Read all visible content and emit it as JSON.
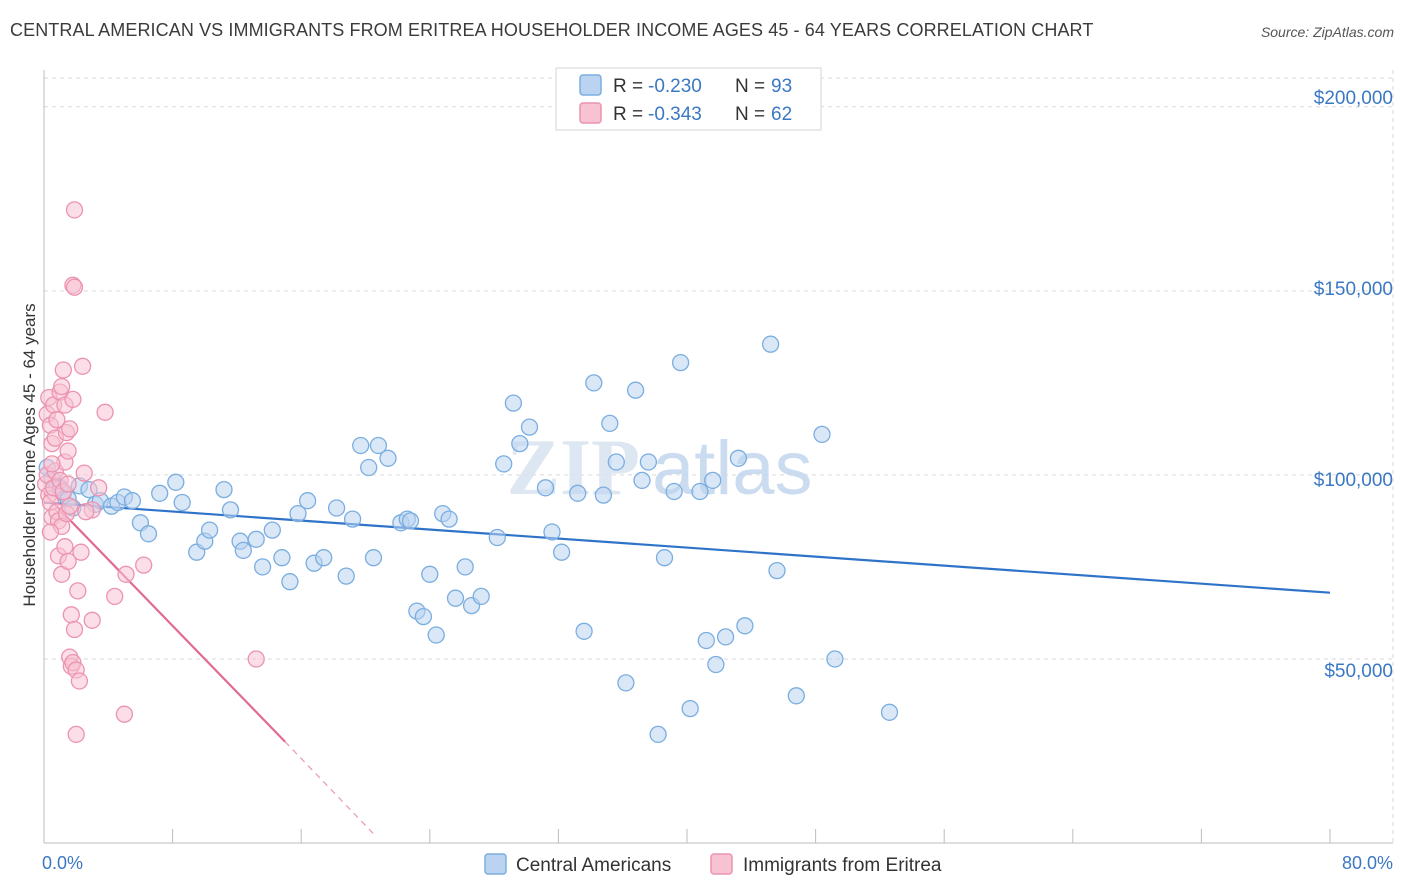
{
  "header": {
    "title": "CENTRAL AMERICAN VS IMMIGRANTS FROM ERITREA HOUSEHOLDER INCOME AGES 45 - 64 YEARS CORRELATION CHART",
    "source": "Source: ZipAtlas.com"
  },
  "watermark": {
    "zip": "ZIP",
    "atlas": "atlas"
  },
  "colors": {
    "blue_fill": "#b9d3f0",
    "blue_stroke": "#7aaee0",
    "blue_line": "#2f73c9",
    "pink_fill": "#f7c3d3",
    "pink_stroke": "#ec93b0",
    "pink_line": "#e06a95",
    "axis_text": "#3b78c4",
    "grid": "#d9d9d9"
  },
  "legend": {
    "rows": [
      {
        "r_label": "R = ",
        "r_value": "-0.230",
        "n_label": "N = ",
        "n_value": "93",
        "series": "blue"
      },
      {
        "r_label": "R = ",
        "r_value": "-0.343",
        "n_label": "N = ",
        "n_value": "62",
        "series": "pink"
      }
    ]
  },
  "chart_data": {
    "type": "scatter",
    "title": "CENTRAL AMERICAN VS IMMIGRANTS FROM ERITREA HOUSEHOLDER INCOME AGES 45 - 64 YEARS CORRELATION CHART",
    "xlabel": "",
    "ylabel": "Householder Income Ages 45 - 64 years",
    "xlim": [
      0,
      80
    ],
    "ylim": [
      0,
      210000
    ],
    "x_tick_labels": [
      "0.0%",
      "80.0%"
    ],
    "y_ticks": [
      50000,
      100000,
      150000,
      200000
    ],
    "y_tick_labels": [
      "$50,000",
      "$100,000",
      "$150,000",
      "$200,000"
    ],
    "grid": true,
    "legend_position": "bottom-center",
    "series": [
      {
        "name": "Central Americans",
        "color": "blue",
        "r": -0.23,
        "n": 93,
        "trend": {
          "x": [
            0,
            80
          ],
          "y": [
            92500,
            68000
          ]
        },
        "points": [
          [
            0.2,
            102000
          ],
          [
            0.5,
            99000
          ],
          [
            0.8,
            97000
          ],
          [
            1.0,
            96500
          ],
          [
            1.2,
            95000
          ],
          [
            1.5,
            93500
          ],
          [
            1.8,
            91000
          ],
          [
            2.2,
            97000
          ],
          [
            2.8,
            96000
          ],
          [
            3.2,
            92000
          ],
          [
            3.5,
            93000
          ],
          [
            4.2,
            91500
          ],
          [
            4.6,
            92500
          ],
          [
            5.0,
            94000
          ],
          [
            5.5,
            93000
          ],
          [
            6.0,
            87000
          ],
          [
            6.5,
            84000
          ],
          [
            7.2,
            95000
          ],
          [
            8.2,
            98000
          ],
          [
            8.6,
            92500
          ],
          [
            9.5,
            79000
          ],
          [
            10.0,
            82000
          ],
          [
            10.3,
            85000
          ],
          [
            11.2,
            96000
          ],
          [
            11.6,
            90500
          ],
          [
            12.2,
            82000
          ],
          [
            12.4,
            79500
          ],
          [
            13.2,
            82500
          ],
          [
            13.6,
            75000
          ],
          [
            14.2,
            85000
          ],
          [
            14.8,
            77500
          ],
          [
            15.3,
            71000
          ],
          [
            15.8,
            89500
          ],
          [
            16.4,
            93000
          ],
          [
            16.8,
            76000
          ],
          [
            17.4,
            77500
          ],
          [
            18.2,
            91000
          ],
          [
            18.8,
            72500
          ],
          [
            19.2,
            88000
          ],
          [
            19.7,
            108000
          ],
          [
            20.2,
            102000
          ],
          [
            20.5,
            77500
          ],
          [
            20.8,
            108000
          ],
          [
            21.4,
            104500
          ],
          [
            22.2,
            87000
          ],
          [
            22.6,
            88000
          ],
          [
            22.8,
            87500
          ],
          [
            23.2,
            63000
          ],
          [
            23.6,
            61500
          ],
          [
            24.0,
            73000
          ],
          [
            24.4,
            56500
          ],
          [
            24.8,
            89500
          ],
          [
            25.2,
            88000
          ],
          [
            25.6,
            66500
          ],
          [
            26.2,
            75000
          ],
          [
            26.6,
            64500
          ],
          [
            27.2,
            67000
          ],
          [
            28.2,
            83000
          ],
          [
            28.6,
            103000
          ],
          [
            29.2,
            119500
          ],
          [
            29.6,
            108500
          ],
          [
            30.2,
            113000
          ],
          [
            31.2,
            96500
          ],
          [
            31.6,
            84500
          ],
          [
            32.2,
            79000
          ],
          [
            33.2,
            95000
          ],
          [
            33.6,
            57500
          ],
          [
            34.2,
            125000
          ],
          [
            34.8,
            94500
          ],
          [
            35.2,
            114000
          ],
          [
            35.6,
            103500
          ],
          [
            36.2,
            43500
          ],
          [
            36.8,
            123000
          ],
          [
            37.2,
            98500
          ],
          [
            37.6,
            103500
          ],
          [
            38.2,
            29500
          ],
          [
            38.6,
            77500
          ],
          [
            39.2,
            95500
          ],
          [
            39.6,
            130500
          ],
          [
            40.2,
            36500
          ],
          [
            40.8,
            95500
          ],
          [
            41.2,
            55000
          ],
          [
            41.6,
            98500
          ],
          [
            41.8,
            48500
          ],
          [
            42.4,
            56000
          ],
          [
            43.2,
            104500
          ],
          [
            43.6,
            59000
          ],
          [
            45.2,
            135500
          ],
          [
            45.6,
            74000
          ],
          [
            46.8,
            40000
          ],
          [
            48.4,
            111000
          ],
          [
            49.2,
            50000
          ],
          [
            52.6,
            35500
          ]
        ]
      },
      {
        "name": "Immigrants from Eritrea",
        "color": "pink",
        "r": -0.343,
        "n": 62,
        "trend": {
          "x": [
            0,
            15
          ],
          "y": [
            95000,
            27500
          ]
        },
        "trend_dashed": {
          "x": [
            15,
            20.5
          ],
          "y": [
            27500,
            2500
          ]
        },
        "points": [
          [
            0.1,
            97500
          ],
          [
            0.2,
            100000
          ],
          [
            0.3,
            94500
          ],
          [
            0.4,
            92500
          ],
          [
            0.5,
            88500
          ],
          [
            0.6,
            96500
          ],
          [
            0.7,
            101000
          ],
          [
            0.8,
            90000
          ],
          [
            0.9,
            87500
          ],
          [
            1.0,
            98500
          ],
          [
            1.1,
            86000
          ],
          [
            1.2,
            95500
          ],
          [
            1.3,
            103500
          ],
          [
            1.4,
            89500
          ],
          [
            1.5,
            97500
          ],
          [
            1.6,
            91500
          ],
          [
            0.2,
            116500
          ],
          [
            0.3,
            121000
          ],
          [
            0.4,
            113500
          ],
          [
            0.5,
            108500
          ],
          [
            0.6,
            119000
          ],
          [
            0.7,
            110000
          ],
          [
            0.8,
            115000
          ],
          [
            1.0,
            122500
          ],
          [
            1.1,
            124000
          ],
          [
            1.2,
            128500
          ],
          [
            1.3,
            119000
          ],
          [
            1.4,
            111500
          ],
          [
            1.5,
            106500
          ],
          [
            1.6,
            112500
          ],
          [
            1.8,
            120500
          ],
          [
            0.9,
            78000
          ],
          [
            1.1,
            73000
          ],
          [
            1.3,
            80500
          ],
          [
            1.5,
            76500
          ],
          [
            1.7,
            62000
          ],
          [
            1.9,
            58000
          ],
          [
            2.1,
            68500
          ],
          [
            2.3,
            79000
          ],
          [
            1.6,
            50500
          ],
          [
            1.7,
            48000
          ],
          [
            1.8,
            49000
          ],
          [
            2.0,
            47000
          ],
          [
            2.2,
            44000
          ],
          [
            2.0,
            29500
          ],
          [
            1.8,
            151500
          ],
          [
            1.9,
            151000
          ],
          [
            1.9,
            172000
          ],
          [
            2.4,
            129500
          ],
          [
            3.0,
            60500
          ],
          [
            3.0,
            90500
          ],
          [
            3.4,
            96500
          ],
          [
            3.8,
            117000
          ],
          [
            4.4,
            67000
          ],
          [
            5.1,
            73000
          ],
          [
            5.0,
            35000
          ],
          [
            6.2,
            75500
          ],
          [
            13.2,
            50000
          ],
          [
            2.5,
            100500
          ],
          [
            2.6,
            90000
          ],
          [
            0.4,
            84500
          ],
          [
            0.5,
            103000
          ]
        ]
      }
    ]
  }
}
